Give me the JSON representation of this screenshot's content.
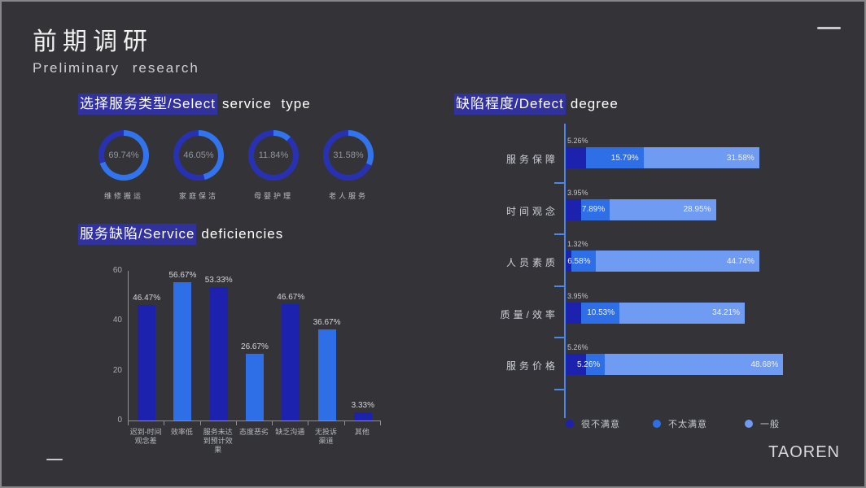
{
  "slide": {
    "title": "前期调研",
    "subtitle": "Preliminary research",
    "brand": "TAOREN"
  },
  "headings": {
    "service_type": {
      "highlight": "选择服务类型/Select",
      "rest": "service type"
    },
    "deficiencies": {
      "highlight": "服务缺陷/Service",
      "rest": "deficiencies"
    },
    "defect_degree": {
      "highlight": "缺陷程度/Defect",
      "rest": "degree"
    }
  },
  "theme": {
    "background": "#343438",
    "highlight_box": "#32329f",
    "axis_gray": "#909092",
    "axis_blue": "#4d86f0",
    "navy": "#1c21ae",
    "bright_blue": "#2e6fe8",
    "light_blue": "#6f9bf2",
    "donut_ring_base": "#2731b2",
    "donut_arc": "#3273ee"
  },
  "chart_data": [
    {
      "type": "pie",
      "variant": "donut-gauge-group",
      "title": "选择服务类型/Select service type",
      "categories": [
        "维修搬运",
        "家庭保洁",
        "母婴护理",
        "老人服务"
      ],
      "values": [
        69.74,
        46.05,
        11.84,
        31.58
      ],
      "unit": "%",
      "arc_color": "#3273ee",
      "ring_color": "#2731b2"
    },
    {
      "type": "bar",
      "title": "服务缺陷/Service deficiencies",
      "categories": [
        "迟到-时间\n观念差",
        "效率低",
        "服务未达\n到预计效\n果",
        "态度恶劣",
        "缺乏沟通",
        "无投诉\n渠道",
        "其他"
      ],
      "values": [
        46.47,
        56.67,
        53.33,
        26.67,
        46.67,
        36.67,
        3.33
      ],
      "unit": "%",
      "ylim": [
        0,
        60
      ],
      "yticks": [
        0,
        20,
        40,
        60
      ],
      "grid": false,
      "bar_colors_alternating": [
        "#1c21ae",
        "#2e6fe8"
      ]
    },
    {
      "type": "bar",
      "orientation": "horizontal",
      "variant": "stacked",
      "title": "缺陷程度/Defect degree",
      "categories": [
        "服务保障",
        "时间观念",
        "人员素质",
        "质量/效率",
        "服务价格"
      ],
      "series": [
        {
          "name": "很不满意",
          "color": "#1c21ae",
          "values": [
            5.26,
            3.95,
            1.32,
            3.95,
            5.26
          ]
        },
        {
          "name": "不太满意",
          "color": "#2e6fe8",
          "values": [
            15.79,
            7.89,
            6.58,
            10.53,
            5.26
          ]
        },
        {
          "name": "一般",
          "color": "#6f9bf2",
          "values": [
            31.58,
            28.95,
            44.74,
            34.21,
            48.68
          ]
        }
      ],
      "unit": "%",
      "legend_position": "bottom"
    }
  ]
}
